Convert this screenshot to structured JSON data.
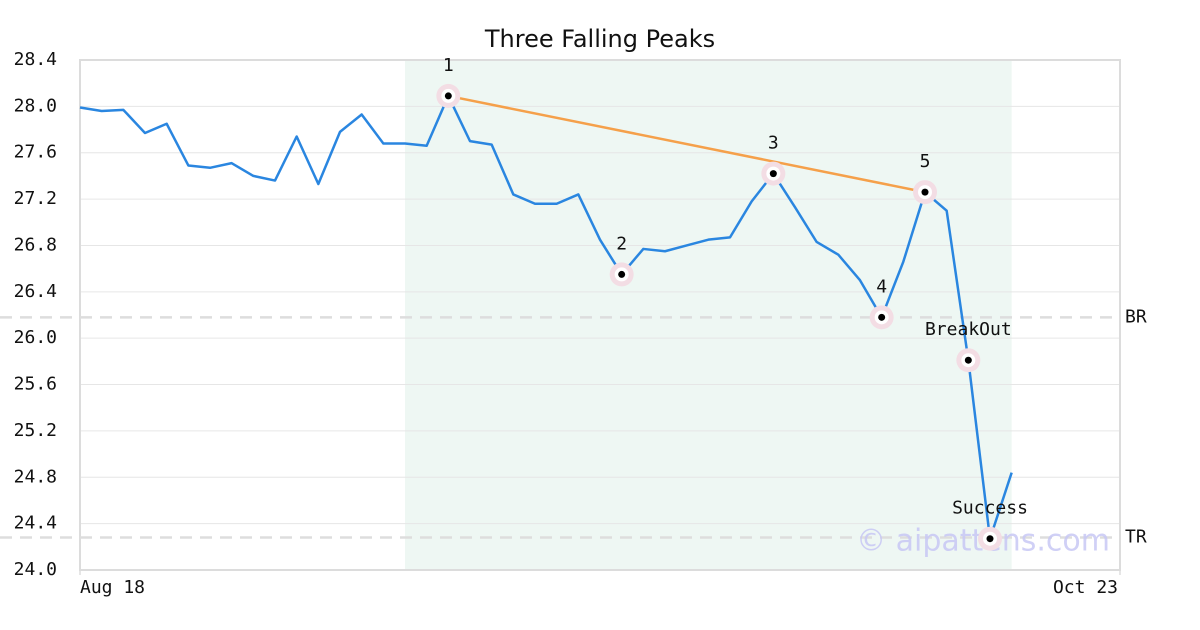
{
  "chart_data": {
    "type": "line",
    "title": "Three Falling Peaks",
    "x": [
      0,
      1,
      2,
      3,
      4,
      5,
      6,
      7,
      8,
      9,
      10,
      11,
      12,
      13,
      14,
      15,
      16,
      17,
      18,
      19,
      20,
      21,
      22,
      23,
      24,
      25,
      26,
      27,
      28,
      29,
      30,
      31,
      32,
      33,
      34,
      35,
      36,
      37,
      38,
      39,
      40,
      41,
      42,
      43
    ],
    "values": [
      27.99,
      27.96,
      27.97,
      27.77,
      27.85,
      27.49,
      27.47,
      27.51,
      27.4,
      27.36,
      27.74,
      27.33,
      27.78,
      27.93,
      27.68,
      27.68,
      27.66,
      28.09,
      27.7,
      27.67,
      27.24,
      27.16,
      27.16,
      27.24,
      26.85,
      26.55,
      26.77,
      26.75,
      26.8,
      26.85,
      26.87,
      27.18,
      27.42,
      27.13,
      26.83,
      26.72,
      26.5,
      26.18,
      26.66,
      27.26,
      27.1,
      25.81,
      24.27,
      24.84
    ],
    "color": "#2a86e0",
    "xlim": [
      0,
      48
    ],
    "xticks": [
      {
        "value": 0,
        "label": "Aug 18"
      },
      {
        "value": 48,
        "label": "Oct 23"
      }
    ],
    "ylim": [
      24,
      28.4
    ],
    "yticks": [
      {
        "value": 24,
        "label": "24.0"
      },
      24.4,
      24.8,
      25.2,
      25.6,
      {
        "value": 26,
        "label": "26.0"
      },
      26.4,
      26.8,
      27.2,
      27.6,
      {
        "value": 28,
        "label": "28.0"
      },
      28.4
    ],
    "grid": true,
    "highlight_range": {
      "x": [
        15,
        43
      ],
      "color": "#eef7f3"
    },
    "trendline": {
      "x": [
        17,
        39
      ],
      "values": [
        28.09,
        27.26
      ],
      "color": "#f5a04a"
    },
    "hlines": [
      {
        "label": "BR",
        "value": 26.18
      },
      {
        "label": "TR",
        "value": 24.28
      }
    ],
    "annotations": [
      {
        "text": "1",
        "x": 17
      },
      {
        "text": "2",
        "x": 25
      },
      {
        "text": "3",
        "x": 32
      },
      {
        "text": "4",
        "x": 37
      },
      {
        "text": "5",
        "x": 39
      },
      {
        "text": "BreakOut",
        "x": 41
      },
      {
        "text": "Success",
        "x": 42
      }
    ],
    "watermark": "© aipattens.com"
  }
}
